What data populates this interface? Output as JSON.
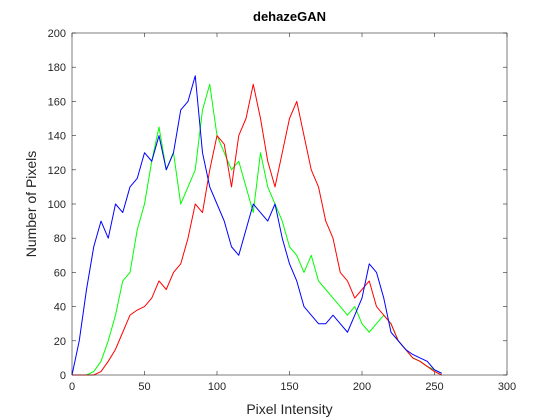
{
  "chart_data": {
    "type": "line",
    "title": "dehazeGAN",
    "xlabel": "Pixel Intensity",
    "ylabel": "Number of Pixels",
    "x": [
      0,
      5,
      10,
      15,
      20,
      25,
      30,
      35,
      40,
      45,
      50,
      55,
      60,
      65,
      70,
      75,
      80,
      85,
      90,
      95,
      100,
      105,
      110,
      115,
      120,
      125,
      130,
      135,
      140,
      145,
      150,
      155,
      160,
      165,
      170,
      175,
      180,
      185,
      190,
      195,
      200,
      205,
      210,
      215,
      220,
      225,
      230,
      235,
      240,
      245,
      250,
      255
    ],
    "series": [
      {
        "name": "green",
        "color": "#00ff00",
        "values": [
          0,
          0,
          0,
          2,
          8,
          20,
          35,
          55,
          60,
          85,
          100,
          125,
          145,
          120,
          130,
          100,
          110,
          120,
          155,
          170,
          140,
          130,
          120,
          125,
          110,
          95,
          130,
          110,
          100,
          90,
          75,
          70,
          60,
          70,
          55,
          50,
          45,
          40,
          35,
          40,
          30,
          25,
          30,
          35,
          30,
          20,
          15,
          10,
          8,
          5,
          3,
          1
        ]
      },
      {
        "name": "red",
        "color": "#ff0000",
        "values": [
          0,
          0,
          0,
          0,
          2,
          8,
          15,
          25,
          35,
          38,
          40,
          45,
          55,
          50,
          60,
          65,
          80,
          100,
          95,
          120,
          140,
          135,
          110,
          140,
          150,
          170,
          150,
          125,
          110,
          130,
          150,
          160,
          140,
          120,
          110,
          90,
          80,
          60,
          55,
          45,
          50,
          55,
          40,
          35,
          30,
          20,
          15,
          10,
          8,
          5,
          2,
          0
        ]
      },
      {
        "name": "blue",
        "color": "#0000ff",
        "values": [
          0,
          20,
          50,
          75,
          90,
          80,
          100,
          95,
          110,
          115,
          130,
          125,
          140,
          120,
          130,
          155,
          160,
          175,
          130,
          110,
          100,
          90,
          75,
          70,
          85,
          100,
          95,
          90,
          100,
          80,
          65,
          55,
          40,
          35,
          30,
          30,
          35,
          30,
          25,
          35,
          45,
          65,
          60,
          45,
          25,
          20,
          15,
          12,
          10,
          8,
          3,
          1
        ]
      }
    ],
    "xlim": [
      0,
      300
    ],
    "ylim": [
      0,
      200
    ],
    "xticks": [
      0,
      50,
      100,
      150,
      200,
      250,
      300
    ],
    "yticks": [
      0,
      20,
      40,
      60,
      80,
      100,
      120,
      140,
      160,
      180,
      200
    ]
  }
}
